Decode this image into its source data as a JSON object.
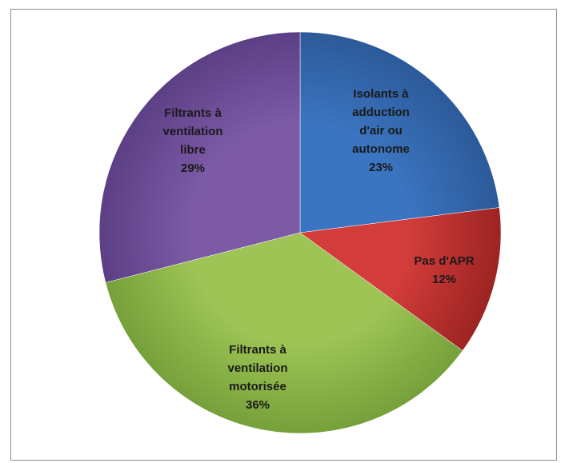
{
  "chart_data": {
    "type": "pie",
    "title": "",
    "slices": [
      {
        "label_lines": [
          "Isolants à",
          "adduction",
          "d'air ou",
          "autonome"
        ],
        "percent_label": "23%",
        "value": 23,
        "color": "#3b74c0",
        "color_dark": "#2c5a99"
      },
      {
        "label_lines": [
          "Pas d'APR"
        ],
        "percent_label": "12%",
        "value": 12,
        "color": "#d23c3a",
        "color_dark": "#9c2422"
      },
      {
        "label_lines": [
          "Filtrants à",
          "ventilation",
          "motorisée"
        ],
        "percent_label": "36%",
        "value": 36,
        "color": "#9dc455",
        "color_dark": "#76a03a"
      },
      {
        "label_lines": [
          "Filtrants à",
          "ventilation",
          "libre"
        ],
        "percent_label": "29%",
        "value": 29,
        "color": "#7c5aa6",
        "color_dark": "#5c3f85"
      }
    ],
    "legend": "none"
  }
}
